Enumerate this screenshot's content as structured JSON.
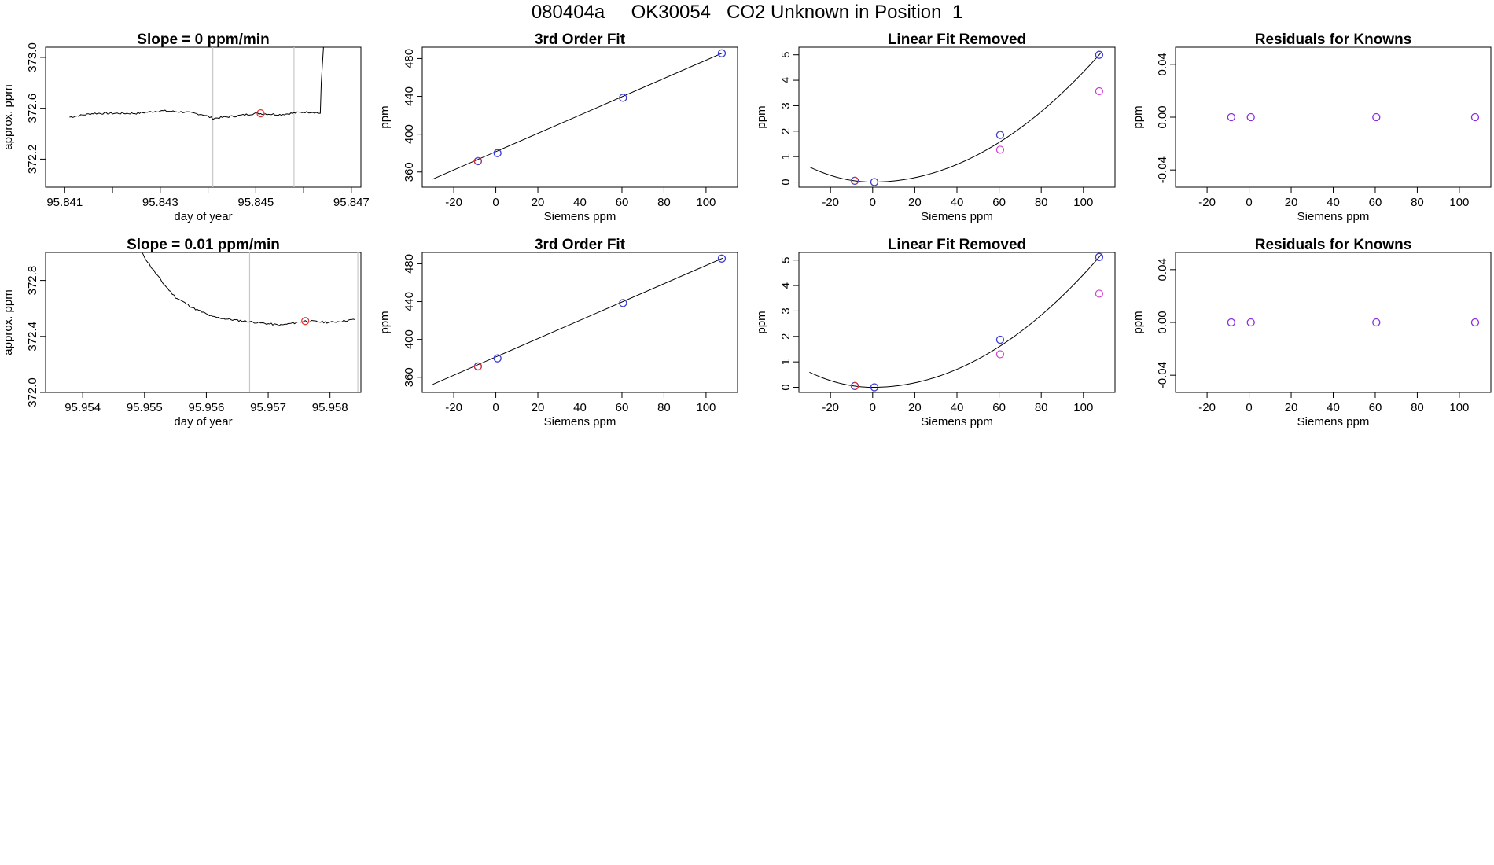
{
  "title": "080404a     OK30054   CO2 Unknown in Position  1",
  "colors": {
    "blue": "#3b3bd6",
    "red": "#e03030",
    "magenta": "#d23ad2",
    "purple": "#8a2be2",
    "guide": "#c8c8c8",
    "line": "#000000"
  },
  "chart_data": [
    {
      "type": "line",
      "title": "Slope =  0  ppm/min",
      "xlabel": "day of year",
      "ylabel": "approx. ppm",
      "xlim": [
        95.8406,
        95.8472
      ],
      "ylim": [
        371.98,
        373.08
      ],
      "xticks": [
        95.841,
        95.842,
        95.843,
        95.844,
        95.845,
        95.846,
        95.847
      ],
      "xtick_labels": [
        "95.841",
        "",
        "95.843",
        "",
        "95.845",
        "",
        "95.847"
      ],
      "yticks": [
        372.2,
        372.6,
        373.0
      ],
      "ytick_labels": [
        "372.2",
        "372.6",
        "373.0"
      ],
      "series": [
        {
          "x": [
            95.8411,
            95.8416,
            95.842,
            95.8425,
            95.843,
            95.8435,
            95.8439,
            95.8441,
            95.8446,
            95.845,
            95.8455,
            95.846,
            95.8462,
            95.84635,
            95.84637,
            95.84642
          ],
          "y": [
            372.53,
            372.56,
            372.56,
            372.56,
            372.58,
            372.57,
            372.55,
            372.52,
            372.54,
            372.56,
            372.55,
            372.57,
            372.57,
            372.56,
            372.8,
            373.1
          ]
        }
      ],
      "vlines": [
        95.8441,
        95.8458
      ],
      "marker": {
        "x": 95.8451,
        "y": 372.56
      }
    },
    {
      "type": "scatter",
      "title": "3rd Order Fit",
      "xlabel": "Siemens ppm",
      "ylabel": "ppm",
      "xlim": [
        -35,
        115
      ],
      "ylim": [
        344,
        492
      ],
      "xticks": [
        -20,
        0,
        20,
        40,
        60,
        80,
        100
      ],
      "xtick_labels": [
        "-20",
        "0",
        "20",
        "40",
        "60",
        "80",
        "100"
      ],
      "yticks": [
        360,
        400,
        440,
        480
      ],
      "ytick_labels": [
        "360",
        "400",
        "440",
        "480"
      ],
      "fit_x": [
        -30,
        108
      ],
      "fit_y": [
        352.5,
        486
      ],
      "points": [
        {
          "x": -8.5,
          "y": 371.5
        },
        {
          "x": 0.8,
          "y": 380
        },
        {
          "x": 60.5,
          "y": 438.5
        },
        {
          "x": 107.5,
          "y": 485.5
        }
      ],
      "highlight": {
        "x": -8.5,
        "y": 371.5
      }
    },
    {
      "type": "scatter",
      "title": "Linear Fit Removed",
      "xlabel": "Siemens ppm",
      "ylabel": "ppm",
      "xlim": [
        -35,
        115
      ],
      "ylim": [
        -0.2,
        5.3
      ],
      "xticks": [
        -20,
        0,
        20,
        40,
        60,
        80,
        100
      ],
      "xtick_labels": [
        "-20",
        "0",
        "20",
        "40",
        "60",
        "80",
        "100"
      ],
      "yticks": [
        0,
        1,
        2,
        3,
        4,
        5
      ],
      "ytick_labels": [
        "0",
        "1",
        "2",
        "3",
        "4",
        "5"
      ],
      "curve": [
        0.00036,
        0,
        0.0012,
        0
      ],
      "points": [
        {
          "x": -8.5,
          "y": 0.05
        },
        {
          "x": 0.8,
          "y": 0.0
        },
        {
          "x": 60.5,
          "y": 1.85
        },
        {
          "x": 107.5,
          "y": 5.0
        }
      ],
      "magenta_points": [
        {
          "x": 60.5,
          "y": 1.27
        },
        {
          "x": 107.5,
          "y": 3.57
        }
      ],
      "highlight": {
        "x": -8.5,
        "y": 0.05
      }
    },
    {
      "type": "scatter",
      "title": "Residuals for Knowns",
      "xlabel": "Siemens ppm",
      "ylabel": "ppm",
      "xlim": [
        -35,
        115
      ],
      "ylim": [
        -0.053,
        0.053
      ],
      "xticks": [
        -20,
        0,
        20,
        40,
        60,
        80,
        100
      ],
      "xtick_labels": [
        "-20",
        "0",
        "20",
        "40",
        "60",
        "80",
        "100"
      ],
      "yticks": [
        -0.04,
        0.0,
        0.04
      ],
      "ytick_labels": [
        "-0.04",
        "0.00",
        "0.04"
      ],
      "points": [
        {
          "x": -8.5,
          "y": 0
        },
        {
          "x": 0.8,
          "y": 0
        },
        {
          "x": 60.5,
          "y": 0
        },
        {
          "x": 107.5,
          "y": 0
        }
      ]
    },
    {
      "type": "line",
      "title": "Slope =  0.01  ppm/min",
      "xlabel": "day of year",
      "ylabel": "approx. ppm",
      "xlim": [
        95.9534,
        95.9585
      ],
      "ylim": [
        372.0,
        373.0
      ],
      "xticks": [
        95.954,
        95.955,
        95.956,
        95.957,
        95.958
      ],
      "xtick_labels": [
        "95.954",
        "95.955",
        "95.956",
        "95.957",
        "95.958"
      ],
      "yticks": [
        372.0,
        372.4,
        372.8
      ],
      "ytick_labels": [
        "372.0",
        "372.4",
        "372.8"
      ],
      "series": [
        {
          "x": [
            95.95495,
            95.9551,
            95.9553,
            95.9555,
            95.9558,
            95.9561,
            95.9564,
            95.9568,
            95.9572,
            95.9576,
            95.958,
            95.9584
          ],
          "y": [
            373.0,
            372.9,
            372.78,
            372.68,
            372.6,
            372.54,
            372.52,
            372.5,
            372.48,
            372.51,
            372.5,
            372.52
          ]
        }
      ],
      "vlines": [
        95.9567,
        95.95845
      ],
      "marker": {
        "x": 95.9576,
        "y": 372.51
      }
    },
    {
      "type": "scatter",
      "title": "3rd Order Fit",
      "xlabel": "Siemens ppm",
      "ylabel": "ppm",
      "xlim": [
        -35,
        115
      ],
      "ylim": [
        344,
        492
      ],
      "xticks": [
        -20,
        0,
        20,
        40,
        60,
        80,
        100
      ],
      "xtick_labels": [
        "-20",
        "0",
        "20",
        "40",
        "60",
        "80",
        "100"
      ],
      "yticks": [
        360,
        400,
        440,
        480
      ],
      "ytick_labels": [
        "360",
        "400",
        "440",
        "480"
      ],
      "fit_x": [
        -30,
        108
      ],
      "fit_y": [
        352.5,
        486
      ],
      "points": [
        {
          "x": -8.5,
          "y": 371.5
        },
        {
          "x": 0.8,
          "y": 380
        },
        {
          "x": 60.5,
          "y": 438.5
        },
        {
          "x": 107.5,
          "y": 485.5
        }
      ],
      "highlight": {
        "x": -8.5,
        "y": 371.5
      }
    },
    {
      "type": "scatter",
      "title": "Linear Fit Removed",
      "xlabel": "Siemens ppm",
      "ylabel": "ppm",
      "xlim": [
        -35,
        115
      ],
      "ylim": [
        -0.2,
        5.3
      ],
      "xticks": [
        -20,
        0,
        20,
        40,
        60,
        80,
        100
      ],
      "xtick_labels": [
        "-20",
        "0",
        "20",
        "40",
        "60",
        "80",
        "100"
      ],
      "yticks": [
        0,
        1,
        2,
        3,
        4,
        5
      ],
      "ytick_labels": [
        "0",
        "1",
        "2",
        "3",
        "4",
        "5"
      ],
      "curve": [
        0.00036,
        0,
        0.00125,
        0
      ],
      "points": [
        {
          "x": -8.5,
          "y": 0.05
        },
        {
          "x": 0.8,
          "y": 0.0
        },
        {
          "x": 60.5,
          "y": 1.87
        },
        {
          "x": 107.5,
          "y": 5.12
        }
      ],
      "magenta_points": [
        {
          "x": 60.5,
          "y": 1.3
        },
        {
          "x": 107.5,
          "y": 3.68
        }
      ],
      "highlight": {
        "x": -8.5,
        "y": 0.05
      }
    },
    {
      "type": "scatter",
      "title": "Residuals for Knowns",
      "xlabel": "Siemens ppm",
      "ylabel": "ppm",
      "xlim": [
        -35,
        115
      ],
      "ylim": [
        -0.053,
        0.053
      ],
      "xticks": [
        -20,
        0,
        20,
        40,
        60,
        80,
        100
      ],
      "xtick_labels": [
        "-20",
        "0",
        "20",
        "40",
        "60",
        "80",
        "100"
      ],
      "yticks": [
        -0.04,
        0.0,
        0.04
      ],
      "ytick_labels": [
        "-0.04",
        "0.00",
        "0.04"
      ],
      "points": [
        {
          "x": -8.5,
          "y": 0
        },
        {
          "x": 0.8,
          "y": 0
        },
        {
          "x": 60.5,
          "y": 0
        },
        {
          "x": 107.5,
          "y": 0
        }
      ]
    }
  ]
}
